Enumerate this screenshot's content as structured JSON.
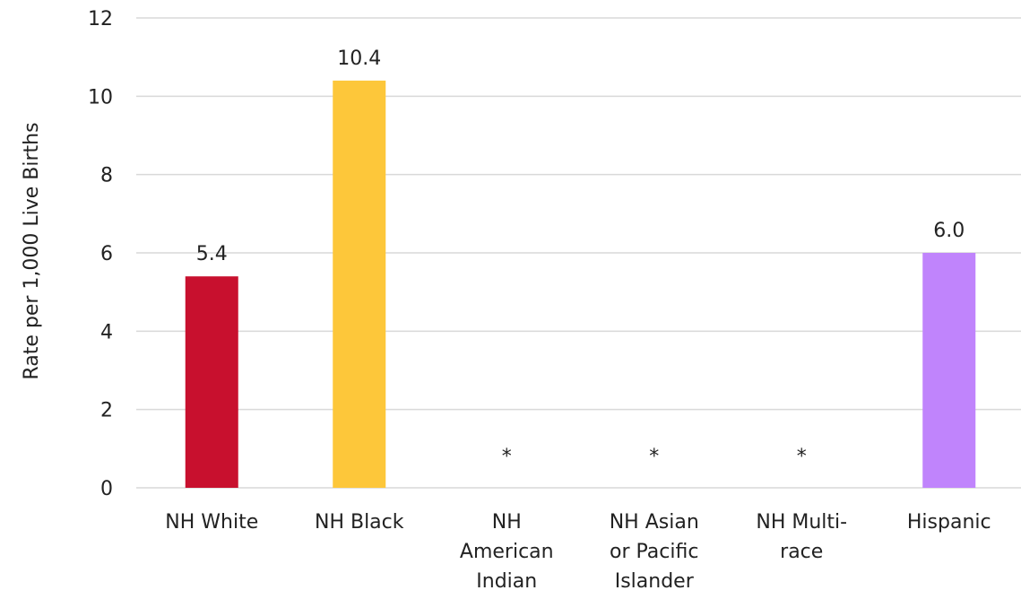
{
  "chart_data": {
    "type": "bar",
    "categories": [
      [
        "NH White"
      ],
      [
        "NH Black"
      ],
      [
        "NH",
        "American",
        "Indian"
      ],
      [
        "NH Asian",
        "or Pacific",
        "Islander"
      ],
      [
        "NH Multi-",
        "race"
      ],
      [
        "Hispanic"
      ]
    ],
    "values": [
      5.4,
      10.4,
      null,
      null,
      null,
      6.0
    ],
    "data_labels": [
      "5.4",
      "10.4",
      "*",
      "*",
      "*",
      "6.0"
    ],
    "bar_colors": [
      "#c8102e",
      "#fdc73a",
      null,
      null,
      null,
      "#c084fc"
    ],
    "ylabel": "Rate per 1,000 Live Births",
    "ylim": [
      0,
      12
    ],
    "yticks": [
      0,
      2,
      4,
      6,
      8,
      10,
      12
    ],
    "grid": true
  }
}
